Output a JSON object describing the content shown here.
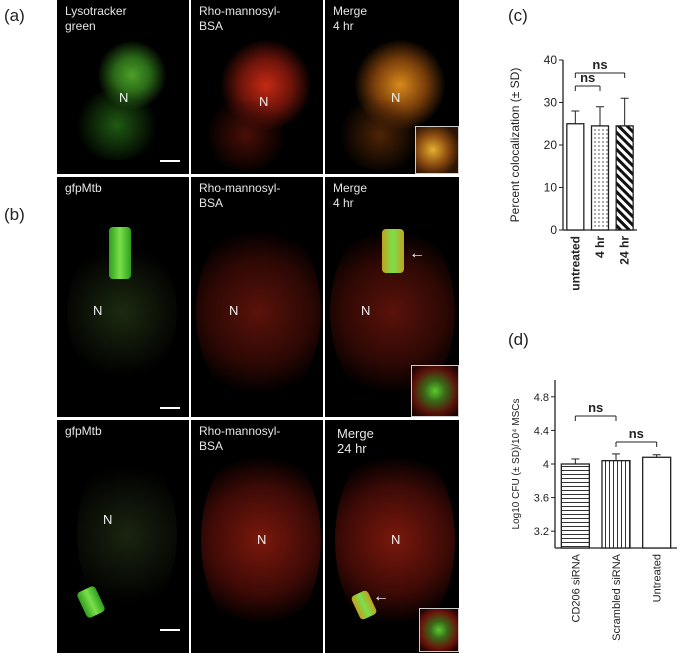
{
  "panel_labels": {
    "a": "(a)",
    "b": "(b)",
    "c": "(c)",
    "d": "(d)"
  },
  "micrographs": {
    "row1": {
      "lysotracker_caption": "Lysotracker\ngreen",
      "rho_caption": "Rho-mannosyl-\nBSA",
      "merge_caption": "Merge\n4 hr",
      "nucleus": "N"
    },
    "row2": {
      "gfp_caption": "gfpMtb",
      "rho_caption": "Rho-mannosyl-\nBSA",
      "merge_caption": "Merge\n4 hr",
      "nucleus": "N"
    },
    "row3": {
      "gfp_caption": "gfpMtb",
      "rho_caption": "Rho-mannosyl-\nBSA",
      "merge_caption": "Merge\n24 hr",
      "nucleus": "N"
    }
  },
  "chart_data": [
    {
      "type": "bar",
      "categories": [
        "untreated",
        "4 hr",
        "24 hr"
      ],
      "values": [
        25,
        24.5,
        24.5
      ],
      "errors": [
        3,
        4.5,
        6.5
      ],
      "ylabel": "Percent colocalization (± SD)",
      "ylim": [
        0,
        40
      ],
      "yticks": [
        0,
        10,
        20,
        30,
        40
      ],
      "fills": [
        "open",
        "dotted",
        "diagonal-stripes"
      ],
      "annotations": [
        "ns",
        "ns"
      ]
    },
    {
      "type": "bar",
      "categories": [
        "CD206 siRNA",
        "Scrambled siRNA",
        "Untreated"
      ],
      "values": [
        4.0,
        4.04,
        4.08
      ],
      "errors": [
        0.06,
        0.08,
        0.03
      ],
      "ylabel": "Log10 CFU (± SD)/10⁴ MSCs",
      "ylim": [
        3.0,
        5.0
      ],
      "yticks": [
        3.2,
        3.6,
        4.0,
        4.4,
        4.8
      ],
      "fills": [
        "horizontal-stripes",
        "vertical-stripes",
        "open"
      ],
      "annotations": [
        "ns",
        "ns"
      ]
    }
  ]
}
